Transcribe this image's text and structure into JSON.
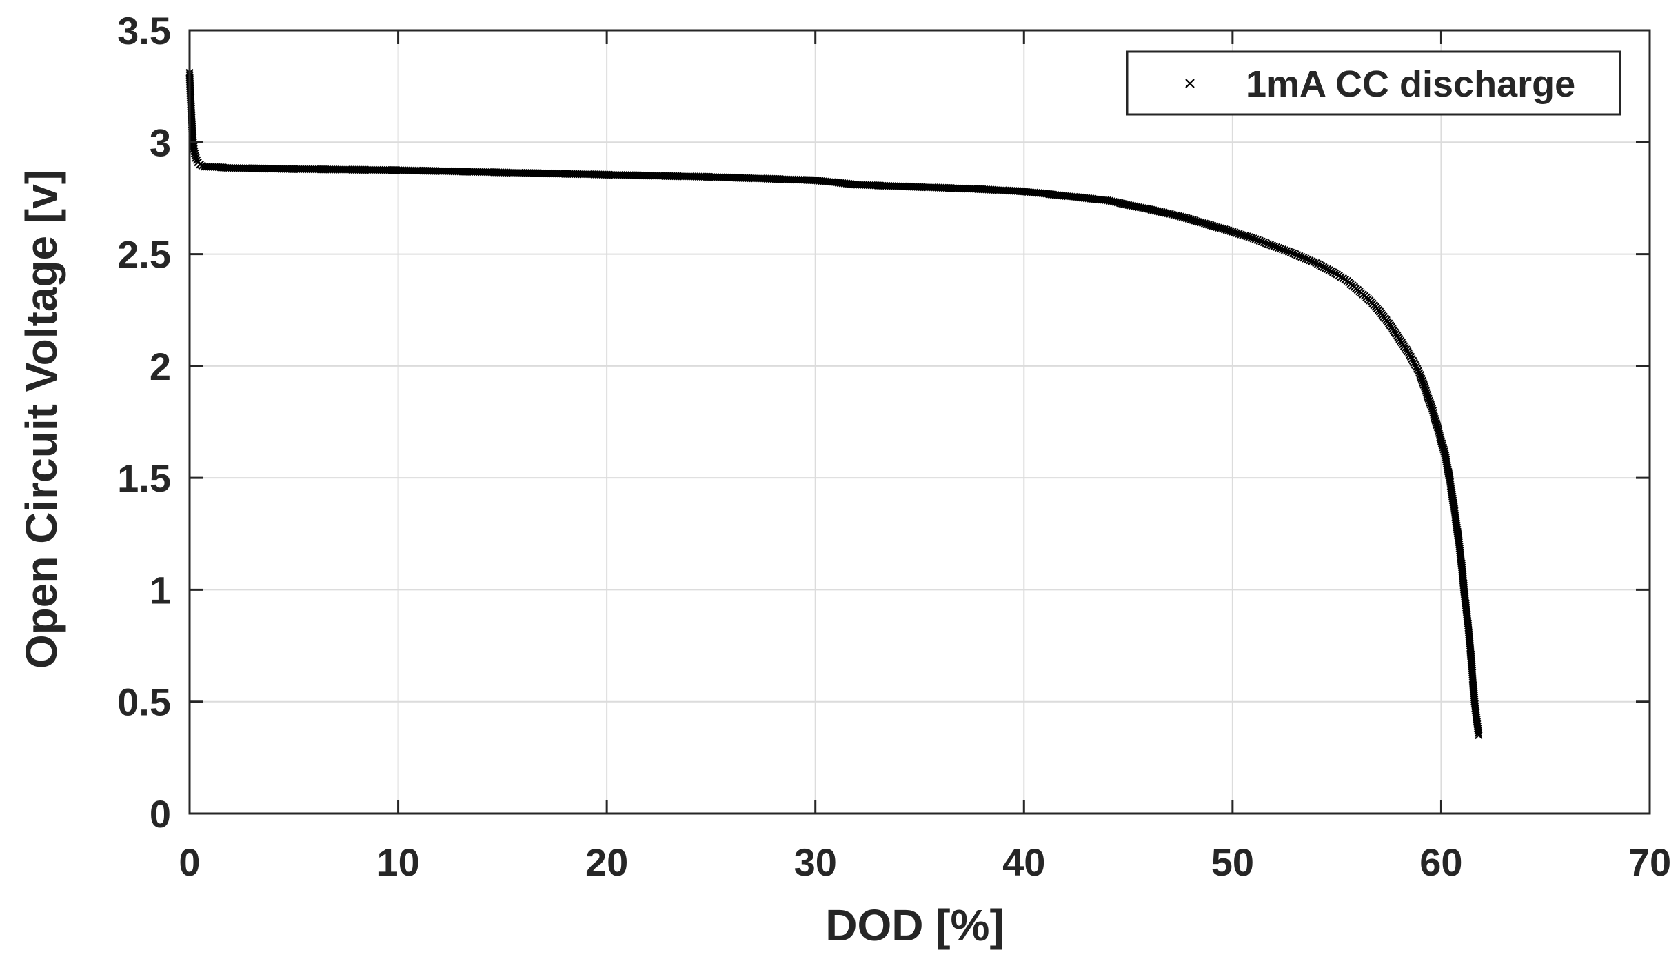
{
  "chart_data": {
    "type": "scatter",
    "xlabel": "DOD [%]",
    "ylabel": "Open Circuit Voltage [v]",
    "xlim": [
      0,
      70
    ],
    "ylim": [
      0,
      3.5
    ],
    "x_ticks": [
      "0",
      "10",
      "20",
      "30",
      "40",
      "50",
      "60",
      "70"
    ],
    "y_ticks": [
      "0",
      "0.5",
      "1",
      "1.5",
      "2",
      "2.5",
      "3",
      "3.5"
    ],
    "grid": true,
    "legend_position": "top-right",
    "marker": "x",
    "series_color": "#000000",
    "series": [
      {
        "name": "1mA CC discharge",
        "x": [
          0.0,
          0.05,
          0.1,
          0.15,
          0.2,
          0.3,
          0.4,
          0.5,
          0.7,
          1.0,
          2,
          5,
          10,
          15,
          20,
          25,
          30,
          32,
          35,
          38,
          40,
          42,
          44,
          45,
          47,
          48,
          50,
          51,
          52,
          53,
          54,
          55,
          55.5,
          56,
          56.5,
          57,
          57.5,
          58,
          58.5,
          59,
          59.3,
          59.6,
          59.9,
          60.2,
          60.4,
          60.6,
          60.8,
          61.0,
          61.1,
          61.2,
          61.3,
          61.4,
          61.5,
          61.6,
          61.7,
          61.8
        ],
        "y": [
          3.31,
          3.2,
          3.1,
          3.02,
          2.97,
          2.93,
          2.91,
          2.9,
          2.89,
          2.89,
          2.885,
          2.88,
          2.875,
          2.865,
          2.855,
          2.845,
          2.83,
          2.81,
          2.8,
          2.79,
          2.78,
          2.76,
          2.74,
          2.72,
          2.68,
          2.655,
          2.6,
          2.57,
          2.535,
          2.5,
          2.46,
          2.41,
          2.38,
          2.34,
          2.3,
          2.25,
          2.19,
          2.12,
          2.05,
          1.96,
          1.88,
          1.8,
          1.7,
          1.6,
          1.5,
          1.38,
          1.25,
          1.1,
          1.0,
          0.92,
          0.84,
          0.74,
          0.62,
          0.5,
          0.42,
          0.35
        ]
      }
    ]
  }
}
